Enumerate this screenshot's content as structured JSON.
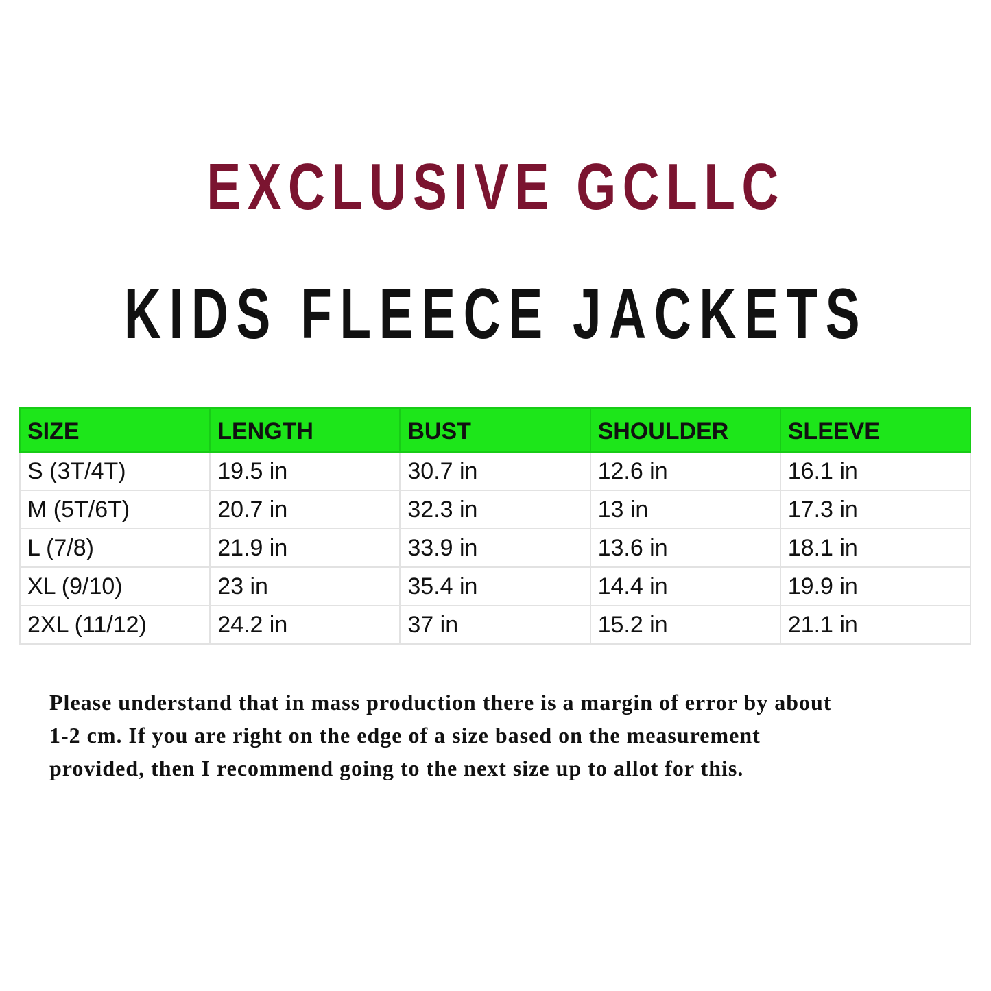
{
  "brand": "EXCLUSIVE GCLLC",
  "title": "KIDS FLEECE JACKETS",
  "table": {
    "header_color": "#1de61a",
    "headers": [
      "SIZE",
      "LENGTH",
      "BUST",
      "SHOULDER",
      "SLEEVE"
    ],
    "rows": [
      [
        "S (3T/4T)",
        "19.5 in",
        "30.7 in",
        "12.6 in",
        "16.1 in"
      ],
      [
        "M (5T/6T)",
        "20.7 in",
        "32.3 in",
        "13 in",
        "17.3 in"
      ],
      [
        "L (7/8)",
        "21.9 in",
        "33.9 in",
        "13.6 in",
        "18.1 in"
      ],
      [
        "XL (9/10)",
        "23 in",
        "35.4 in",
        "14.4 in",
        "19.9 in"
      ],
      [
        "2XL (11/12)",
        "24.2 in",
        "37 in",
        "15.2 in",
        "21.1 in"
      ]
    ]
  },
  "note": {
    "lines": [
      "Please understand that in mass production there is a margin of error by about",
      "1-2 cm. If you are right on the edge of a size based on the measurement",
      "provided, then I recommend going to the next size up to allot for this."
    ]
  }
}
